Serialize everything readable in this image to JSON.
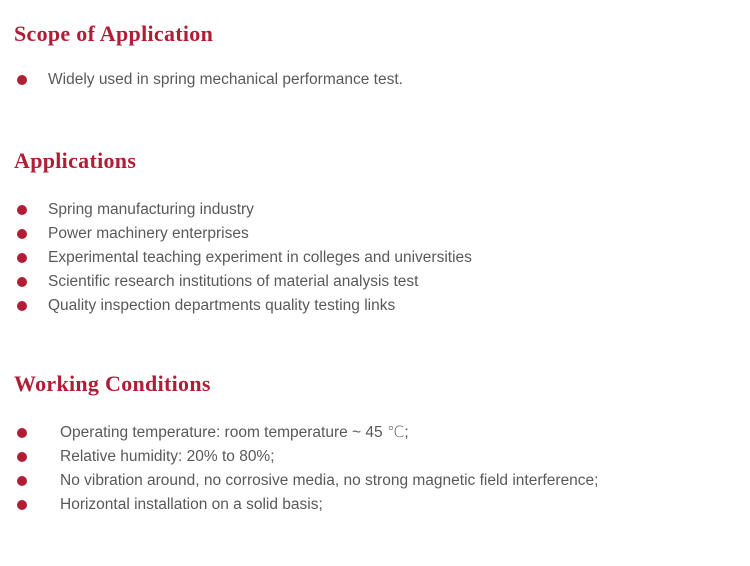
{
  "colors": {
    "accent": "#B01E36",
    "body_text": "#595959"
  },
  "sections": [
    {
      "heading": "Scope of Application",
      "items": [
        "Widely used in spring mechanical performance test."
      ]
    },
    {
      "heading": "Applications",
      "items": [
        "Spring manufacturing industry",
        "Power machinery enterprises",
        "Experimental teaching experiment in colleges and universities",
        "Scientific research institutions of material analysis test",
        "Quality inspection departments quality testing links"
      ]
    },
    {
      "heading": "Working Conditions",
      "items": [
        "Operating temperature: room temperature ~ 45 ℃;",
        "Relative humidity: 20% to 80%;",
        "No vibration around, no corrosive media, no strong magnetic field interference;",
        "Horizontal installation on a solid basis;"
      ]
    }
  ]
}
